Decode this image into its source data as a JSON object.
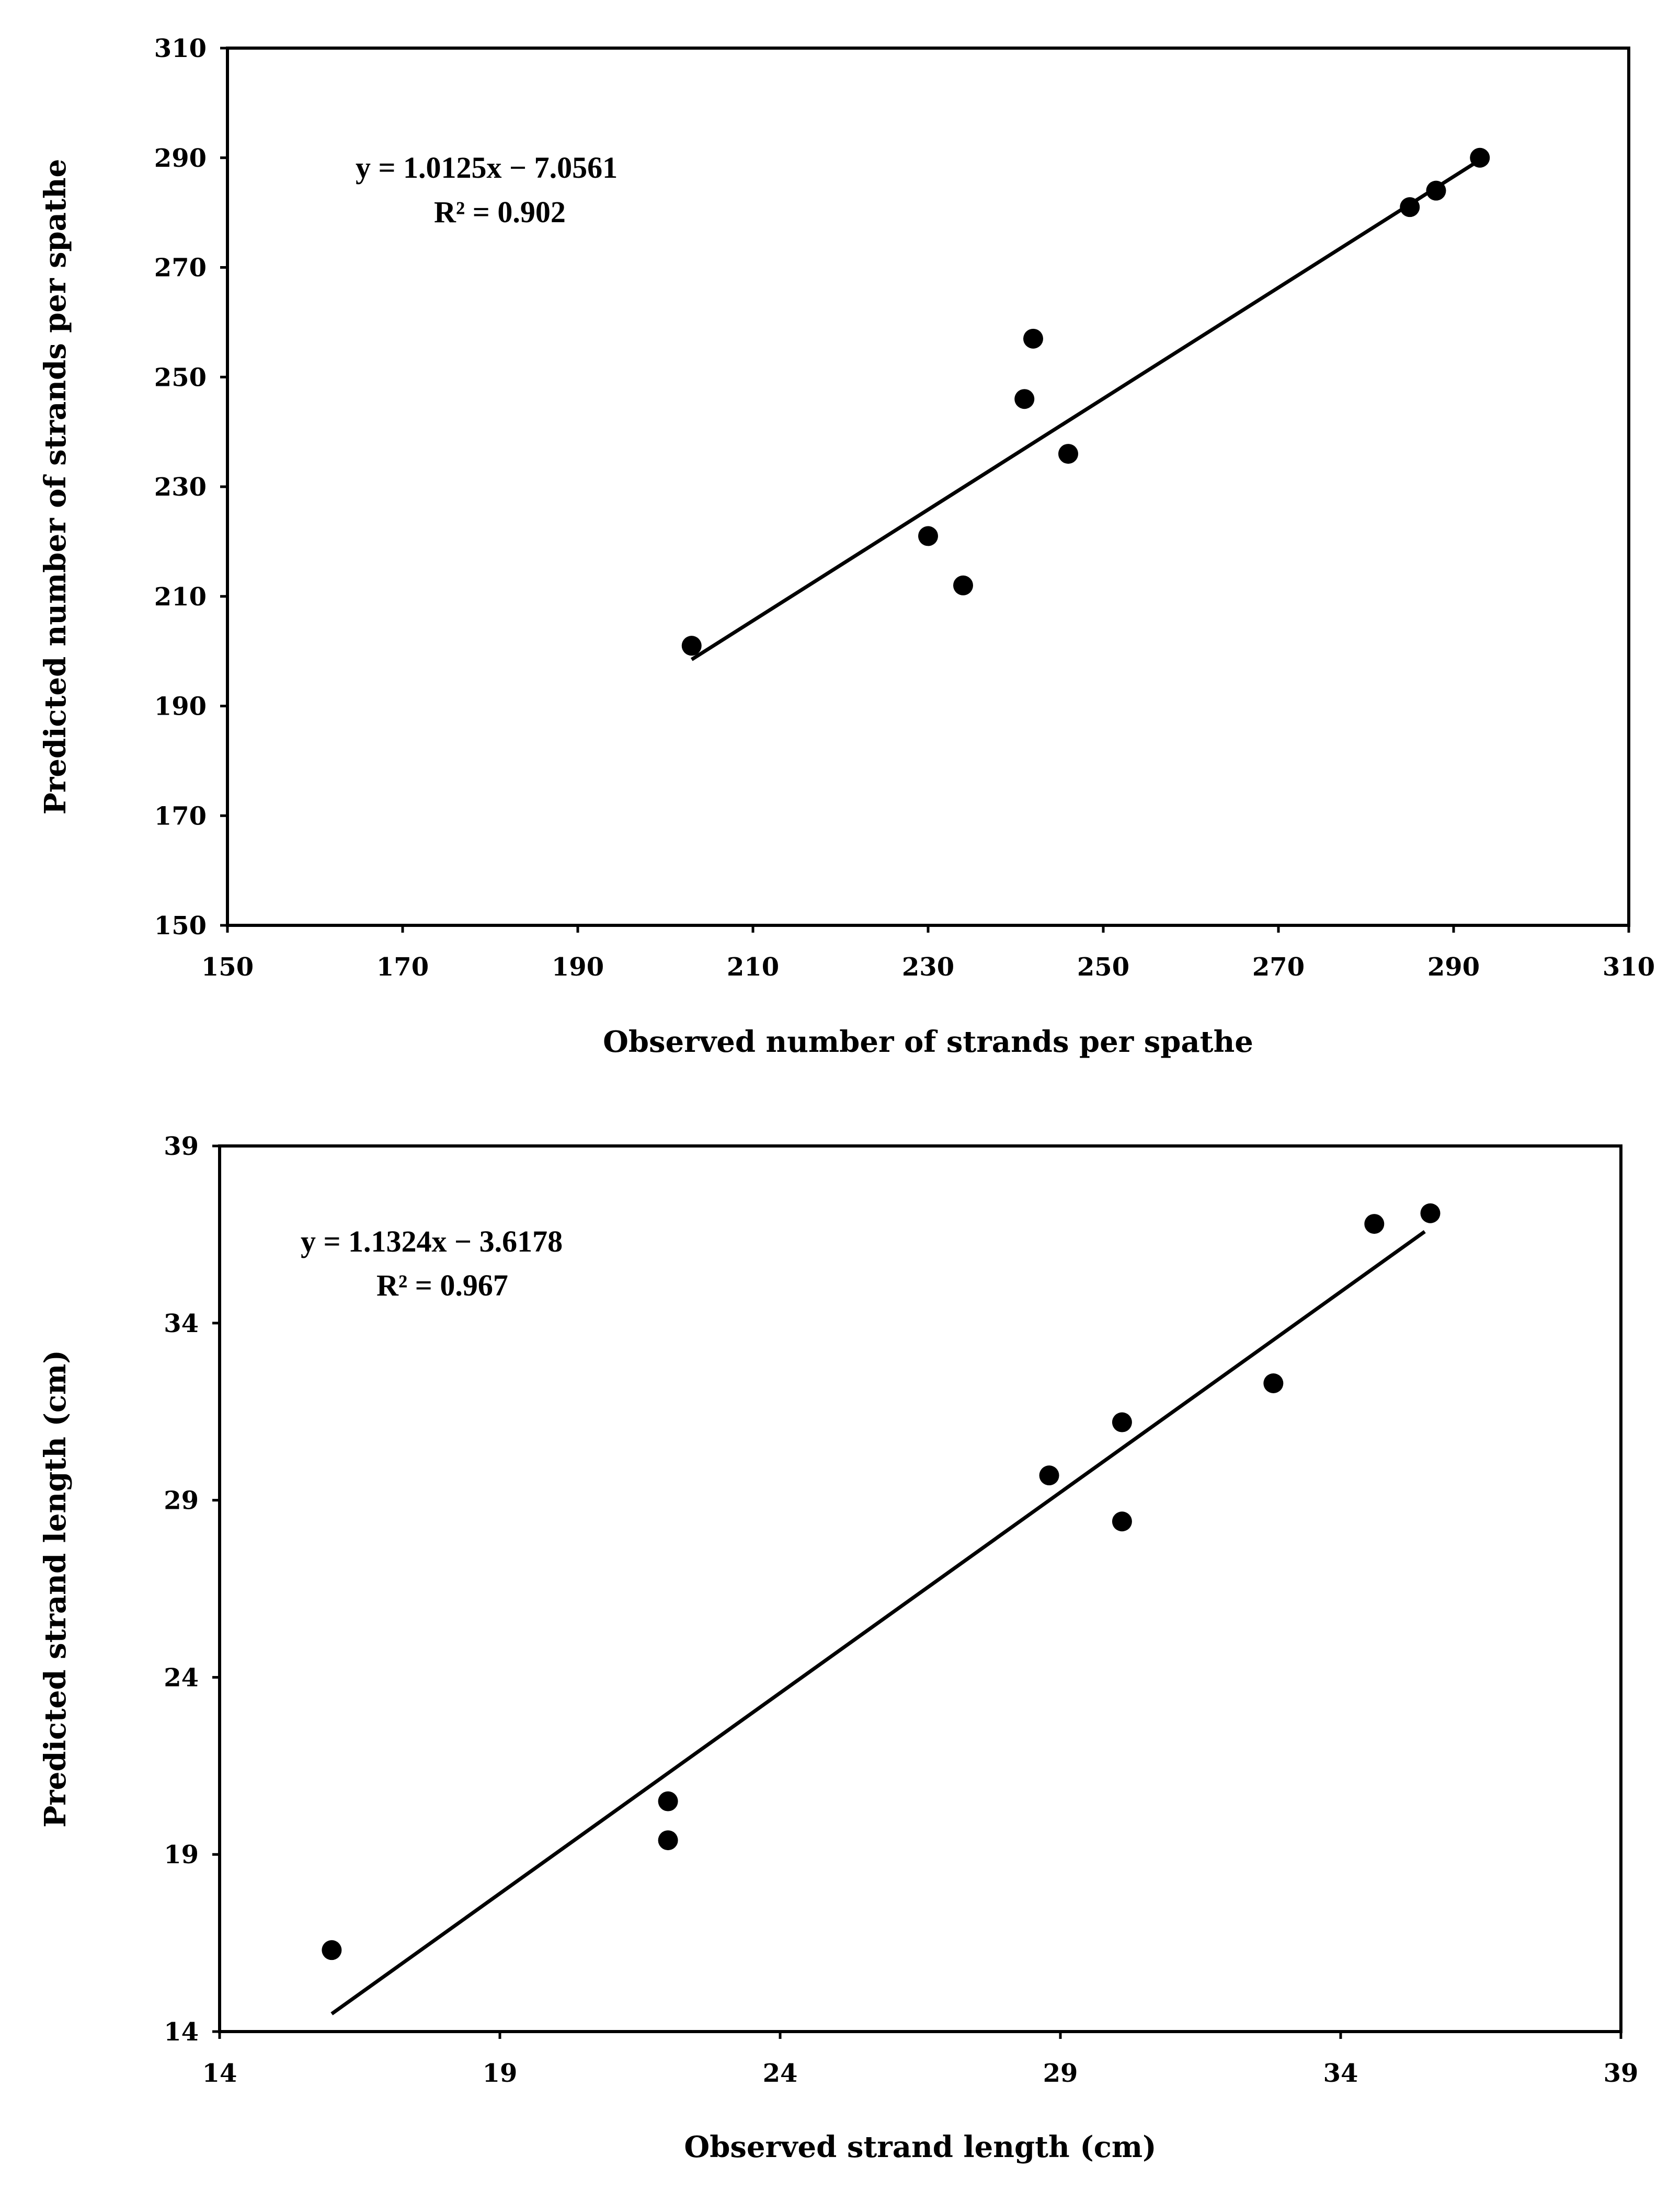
{
  "chart_data": [
    {
      "type": "scatter",
      "xlabel": "Observed number of strands per spathe",
      "ylabel": "Predicted number of strands per spathe",
      "xlim": [
        150,
        310
      ],
      "ylim": [
        150,
        310
      ],
      "xticks": [
        150,
        170,
        190,
        210,
        230,
        250,
        270,
        290,
        310
      ],
      "yticks": [
        150,
        170,
        190,
        210,
        230,
        250,
        270,
        290,
        310
      ],
      "equation": "y = 1.0125x − 7.0561",
      "r2_label": "R² = 0.902",
      "trendline": {
        "slope": 1.0125,
        "intercept": -7.0561,
        "x_range": [
          203,
          293
        ]
      },
      "points": [
        {
          "x": 203,
          "y": 201
        },
        {
          "x": 230,
          "y": 221
        },
        {
          "x": 234,
          "y": 212
        },
        {
          "x": 241,
          "y": 246
        },
        {
          "x": 242,
          "y": 257
        },
        {
          "x": 246,
          "y": 236
        },
        {
          "x": 285,
          "y": 281
        },
        {
          "x": 288,
          "y": 284
        },
        {
          "x": 293,
          "y": 290
        }
      ],
      "grid": false,
      "legend": "none",
      "color": "#000000"
    },
    {
      "type": "scatter",
      "xlabel": "Observed strand length (cm)",
      "ylabel": "Predicted  strand length (cm)",
      "xlim": [
        14,
        39
      ],
      "ylim": [
        14,
        39
      ],
      "xticks": [
        14,
        19,
        24,
        29,
        34,
        39
      ],
      "yticks": [
        14,
        19,
        24,
        29,
        34,
        39
      ],
      "equation": "y = 1.1324x − 3.6178",
      "r2_label": "R² = 0.967",
      "trendline": {
        "slope": 1.1324,
        "intercept": -3.6178,
        "x_range": [
          16,
          35.5
        ]
      },
      "points": [
        {
          "x": 16,
          "y": 16.3
        },
        {
          "x": 22,
          "y": 19.4
        },
        {
          "x": 22,
          "y": 20.5
        },
        {
          "x": 28.8,
          "y": 29.7
        },
        {
          "x": 30.1,
          "y": 28.4
        },
        {
          "x": 30.1,
          "y": 31.2
        },
        {
          "x": 32.8,
          "y": 32.3
        },
        {
          "x": 34.6,
          "y": 36.8
        },
        {
          "x": 35.6,
          "y": 37.1
        }
      ],
      "grid": false,
      "legend": "none",
      "color": "#000000"
    }
  ]
}
